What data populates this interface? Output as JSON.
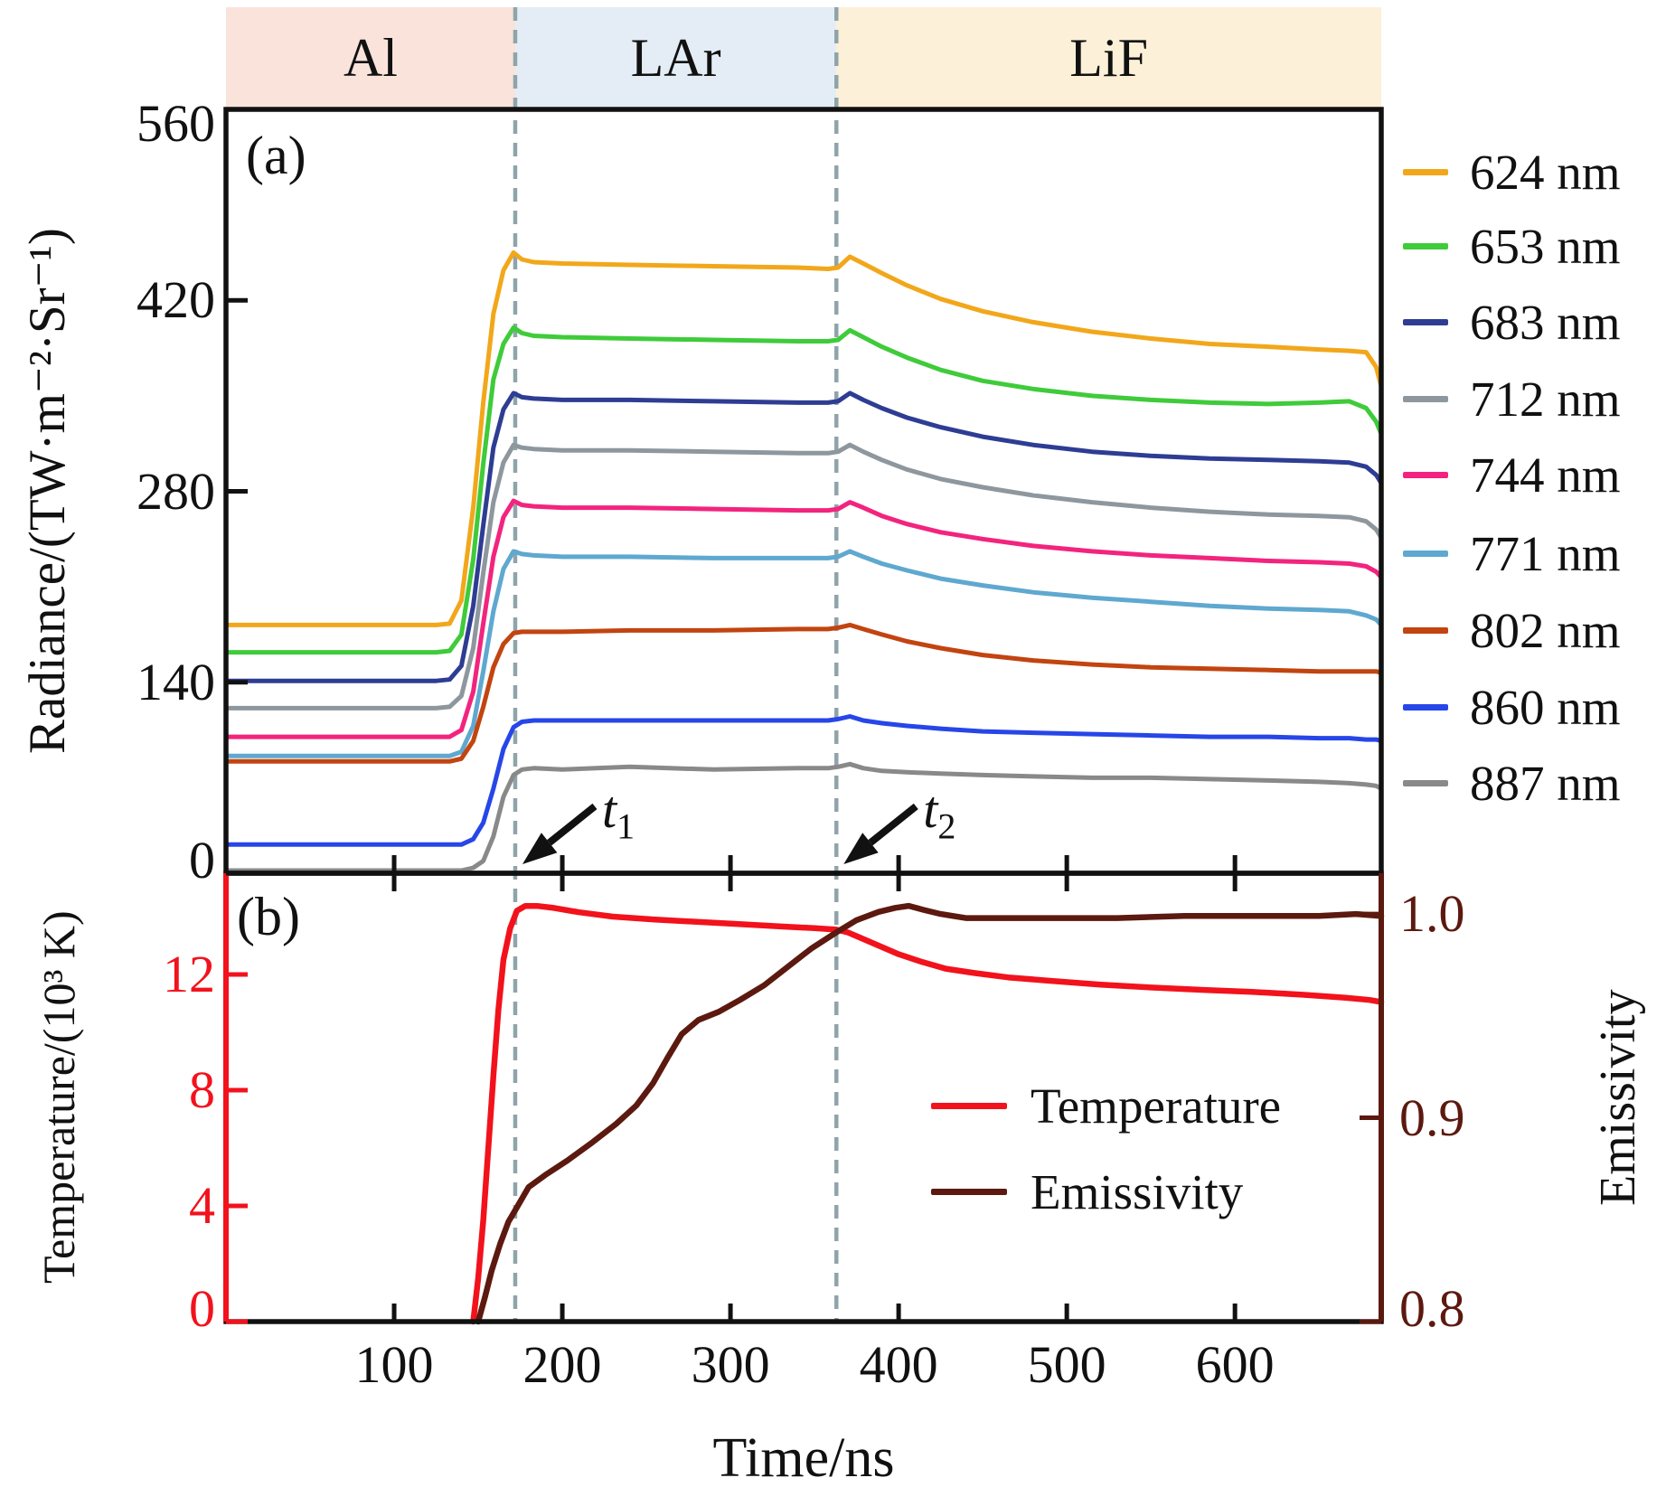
{
  "figure": {
    "panel_a_letter": "(a)",
    "panel_b_letter": "(b)"
  },
  "guide_color": "#8FA4AA",
  "bands": {
    "regions": [
      {
        "label": "Al",
        "from": 0,
        "to": 172,
        "color": "#F9E3DB"
      },
      {
        "label": "LAr",
        "from": 172,
        "to": 363,
        "color": "#E4EDF5"
      },
      {
        "label": "LiF",
        "from": 363,
        "to": 687,
        "color": "#FCF0D8"
      }
    ]
  },
  "annotations": {
    "t1": {
      "symbol": "t",
      "sub": "1",
      "t": 172
    },
    "t2": {
      "symbol": "t",
      "sub": "2",
      "t": 363
    }
  },
  "axes": {
    "x": {
      "label": "Time/ns",
      "ticks": [
        100,
        200,
        300,
        400,
        500,
        600
      ],
      "lim": [
        0,
        687
      ]
    },
    "radiance": {
      "label": "Radiance/(TW·m⁻²·Sr⁻¹)",
      "ticks": [
        0,
        140,
        280,
        420,
        560
      ],
      "lim": [
        0,
        560
      ],
      "color": "#111111"
    },
    "temperature": {
      "label": "Temperature/(10³ K)",
      "ticks": [
        0,
        4,
        8,
        12
      ],
      "lim": [
        0,
        15.5
      ],
      "color": "#F2121C"
    },
    "emissivity": {
      "label": "Emissivity",
      "tick_labels": [
        "0.8",
        "0.9",
        "1.0"
      ],
      "tick_values": [
        0.8,
        0.9,
        1.0
      ],
      "lim": [
        0.8,
        1.02
      ],
      "color": "#5C190F"
    }
  },
  "chart_data": [
    {
      "type": "line",
      "panel": "a",
      "ylabel": "Radiance/(TW·m⁻²·Sr⁻¹)",
      "xlabel": "Time/ns",
      "xlim": [
        0,
        687
      ],
      "ylim": [
        0,
        560
      ],
      "legend_position": "right-outside",
      "grid": false,
      "x": [
        0,
        125,
        133,
        140,
        147,
        153,
        159,
        165,
        171,
        176,
        183,
        200,
        240,
        290,
        340,
        358,
        364,
        371,
        379,
        390,
        405,
        425,
        450,
        480,
        515,
        550,
        585,
        620,
        650,
        668,
        678,
        684,
        687
      ],
      "series": [
        {
          "name": "624 nm",
          "color": "#F2A71B",
          "values": [
            182,
            182,
            183,
            200,
            268,
            345,
            410,
            442,
            455,
            450,
            448,
            447,
            446,
            445,
            444,
            443,
            444,
            452,
            447,
            440,
            431,
            421,
            412,
            404,
            397,
            392,
            388,
            386,
            384,
            383,
            382,
            371,
            357
          ]
        },
        {
          "name": "653 nm",
          "color": "#3FCB3A",
          "values": [
            162,
            162,
            163,
            175,
            230,
            300,
            362,
            388,
            400,
            396,
            394,
            393,
            392,
            391,
            390,
            390,
            391,
            398,
            393,
            386,
            378,
            369,
            361,
            355,
            350,
            347,
            345,
            344,
            345,
            346,
            341,
            331,
            322
          ]
        },
        {
          "name": "683 nm",
          "color": "#2E3D93",
          "values": [
            141,
            141,
            142,
            152,
            196,
            255,
            312,
            340,
            352,
            349,
            348,
            347,
            347,
            346,
            345,
            345,
            346,
            352,
            347,
            341,
            334,
            327,
            320,
            314,
            309,
            306,
            304,
            303,
            302,
            301,
            298,
            292,
            286
          ]
        },
        {
          "name": "712 nm",
          "color": "#8E979E",
          "values": [
            121,
            121,
            122,
            130,
            165,
            220,
            272,
            301,
            314,
            312,
            311,
            310,
            310,
            309,
            308,
            308,
            309,
            314,
            309,
            303,
            296,
            289,
            283,
            277,
            272,
            268,
            265,
            263,
            262,
            261,
            258,
            252,
            246
          ]
        },
        {
          "name": "744 nm",
          "color": "#F2247E",
          "values": [
            100,
            100,
            100,
            105,
            133,
            183,
            232,
            261,
            273,
            270,
            269,
            268,
            268,
            267,
            266,
            266,
            267,
            272,
            268,
            262,
            256,
            250,
            245,
            240,
            236,
            233,
            231,
            229,
            228,
            227,
            225,
            221,
            217
          ]
        },
        {
          "name": "771 nm",
          "color": "#5FA8D0",
          "values": [
            86,
            86,
            86,
            89,
            108,
            148,
            192,
            223,
            236,
            234,
            233,
            232,
            232,
            231,
            231,
            231,
            232,
            236,
            232,
            227,
            222,
            216,
            211,
            206,
            202,
            199,
            196,
            194,
            193,
            192,
            189,
            186,
            182
          ]
        },
        {
          "name": "802 nm",
          "color": "#C24410",
          "values": [
            82,
            82,
            82,
            84,
            97,
            122,
            151,
            168,
            176,
            177,
            177,
            177,
            178,
            178,
            179,
            179,
            180,
            182,
            179,
            175,
            170,
            165,
            160,
            156,
            153,
            151,
            150,
            149,
            148,
            148,
            148,
            148,
            147
          ]
        },
        {
          "name": "860 nm",
          "color": "#2746E8",
          "values": [
            21,
            21,
            21,
            21,
            25,
            37,
            62,
            91,
            107,
            111,
            112,
            112,
            112,
            112,
            112,
            112,
            113,
            115,
            112,
            110,
            108,
            106,
            104,
            103,
            102,
            101,
            100,
            100,
            99,
            99,
            98,
            98,
            97
          ]
        },
        {
          "name": "887 nm",
          "color": "#898989",
          "values": [
            2,
            2,
            2,
            2,
            4,
            9,
            27,
            56,
            72,
            76,
            77,
            76,
            78,
            76,
            77,
            77,
            78,
            80,
            77,
            75,
            74,
            73,
            72,
            71,
            70,
            70,
            69,
            68,
            67,
            66,
            65,
            64,
            62
          ]
        }
      ]
    },
    {
      "type": "line",
      "panel": "b",
      "xlabel": "Time/ns",
      "ylabel_left": "Temperature/(10³ K)",
      "ylabel_right": "Emissivity",
      "xlim": [
        0,
        687
      ],
      "ylim_left": [
        0,
        15.5
      ],
      "ylim_right": [
        0.8,
        1.02
      ],
      "legend_position": "inside-right",
      "grid": false,
      "series": [
        {
          "name": "Temperature",
          "color": "#F2121C",
          "axis": "left",
          "x": [
            147,
            150,
            153,
            156,
            159,
            162,
            165,
            169,
            173,
            178,
            185,
            195,
            210,
            230,
            255,
            280,
            305,
            330,
            350,
            363,
            370,
            378,
            388,
            400,
            413,
            428,
            445,
            465,
            490,
            520,
            550,
            580,
            610,
            640,
            665,
            680,
            687
          ],
          "values": [
            0,
            1.5,
            3.5,
            6,
            8.5,
            10.8,
            12.5,
            13.6,
            14.2,
            14.37,
            14.37,
            14.3,
            14.15,
            14.0,
            13.9,
            13.82,
            13.74,
            13.66,
            13.6,
            13.55,
            13.45,
            13.25,
            13.0,
            12.7,
            12.45,
            12.2,
            12.05,
            11.9,
            11.78,
            11.65,
            11.55,
            11.47,
            11.4,
            11.3,
            11.2,
            11.12,
            11.05
          ]
        },
        {
          "name": "Emissivity",
          "color": "#5C190F",
          "axis": "right",
          "x": [
            150,
            154,
            158,
            163,
            168,
            173,
            180,
            190,
            203,
            218,
            232,
            244,
            254,
            263,
            271,
            281,
            293,
            306,
            320,
            334,
            348,
            363,
            375,
            388,
            398,
            406,
            415,
            425,
            440,
            460,
            490,
            530,
            570,
            610,
            650,
            672,
            687
          ],
          "values": [
            0.8,
            0.812,
            0.825,
            0.838,
            0.849,
            0.856,
            0.866,
            0.872,
            0.879,
            0.888,
            0.897,
            0.906,
            0.917,
            0.93,
            0.941,
            0.948,
            0.952,
            0.958,
            0.965,
            0.974,
            0.983,
            0.991,
            0.997,
            1.001,
            1.003,
            1.004,
            1.002,
            1.0,
            0.998,
            0.998,
            0.998,
            0.998,
            0.999,
            0.999,
            0.999,
            1.0,
            0.999
          ]
        }
      ]
    }
  ]
}
